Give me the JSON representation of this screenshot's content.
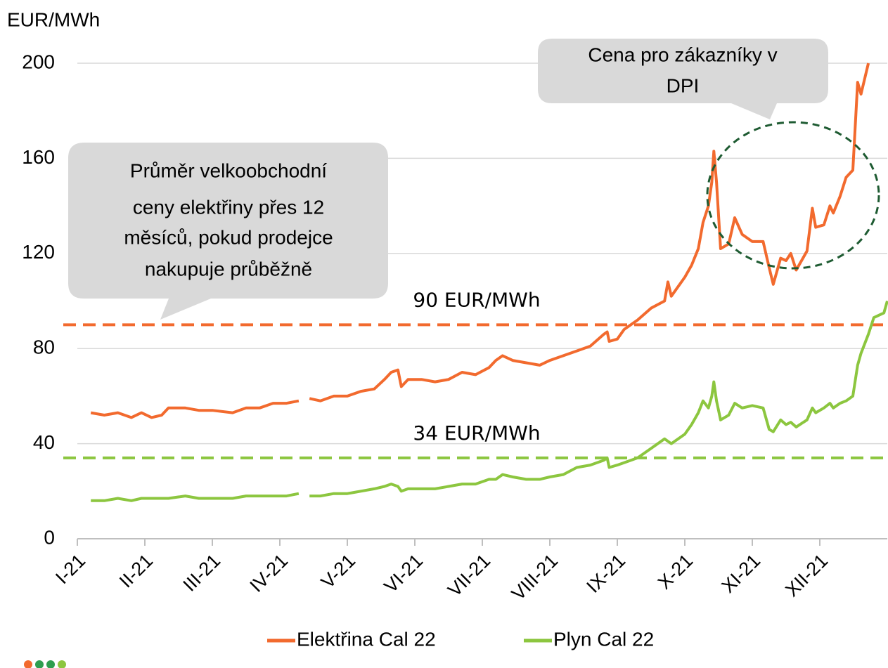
{
  "chart_data": {
    "type": "line",
    "y_axis_label": "EUR/MWh",
    "xlim": [
      0,
      12
    ],
    "xticks": [
      {
        "value": 0,
        "label": "I-21"
      },
      {
        "value": 1,
        "label": "II-21"
      },
      {
        "value": 2,
        "label": "III-21"
      },
      {
        "value": 3,
        "label": "IV-21"
      },
      {
        "value": 4,
        "label": "V-21"
      },
      {
        "value": 5,
        "label": "VI-21"
      },
      {
        "value": 6,
        "label": "VII-21"
      },
      {
        "value": 7,
        "label": "VIII-21"
      },
      {
        "value": 8,
        "label": "IX-21"
      },
      {
        "value": 9,
        "label": "X-21"
      },
      {
        "value": 10,
        "label": "XI-21"
      },
      {
        "value": 11,
        "label": "XII-21"
      }
    ],
    "ylim": [
      0,
      200
    ],
    "yticks": [
      0,
      40,
      80,
      120,
      160,
      200
    ],
    "grid": true,
    "series": [
      {
        "name": "Elektřina Cal 22",
        "color": "#f26a2e",
        "x": [
          0.2,
          0.4,
          0.6,
          0.8,
          0.95,
          1.1,
          1.25,
          1.35,
          1.6,
          1.8,
          2.0,
          2.3,
          2.5,
          2.7,
          2.9,
          3.1,
          3.28,
          3.36,
          3.44,
          3.6,
          3.8,
          4.0,
          4.2,
          4.4,
          4.55,
          4.65,
          4.75,
          4.8,
          4.9,
          5.1,
          5.3,
          5.5,
          5.7,
          5.9,
          6.1,
          6.2,
          6.3,
          6.45,
          6.65,
          6.85,
          7.0,
          7.2,
          7.4,
          7.6,
          7.8,
          7.85,
          7.88,
          8.0,
          8.1,
          8.3,
          8.5,
          8.7,
          8.75,
          8.8,
          9.0,
          9.1,
          9.2,
          9.27,
          9.35,
          9.4,
          9.43,
          9.47,
          9.53,
          9.65,
          9.74,
          9.85,
          10.0,
          10.16,
          10.25,
          10.31,
          10.42,
          10.5,
          10.57,
          10.65,
          10.81,
          10.89,
          10.94,
          11.06,
          11.15,
          11.2,
          11.3,
          11.39,
          11.49,
          11.56,
          11.61,
          11.72
        ],
        "values": [
          53,
          52,
          53,
          51,
          53,
          51,
          52,
          55,
          55,
          54,
          54,
          53,
          55,
          55,
          57,
          57,
          58,
          null,
          59,
          58,
          60,
          60,
          62,
          63,
          67,
          70,
          71,
          64,
          67,
          67,
          66,
          67,
          70,
          69,
          72,
          75,
          77,
          75,
          74,
          73,
          75,
          77,
          79,
          81,
          86,
          87,
          83,
          84,
          88,
          92,
          97,
          100,
          108,
          102,
          110,
          115,
          122,
          133,
          140,
          150,
          163,
          150,
          122,
          124,
          135,
          128,
          125,
          125,
          114,
          107,
          118,
          117,
          120,
          113,
          121,
          139,
          131,
          132,
          140,
          137,
          144,
          152,
          155,
          192,
          187,
          200
        ]
      },
      {
        "name": "Plyn Cal 22",
        "color": "#8cc63f",
        "x": [
          0.2,
          0.4,
          0.6,
          0.8,
          0.95,
          1.1,
          1.25,
          1.35,
          1.6,
          1.8,
          2.0,
          2.3,
          2.5,
          2.7,
          2.9,
          3.1,
          3.28,
          3.36,
          3.44,
          3.6,
          3.8,
          4.0,
          4.2,
          4.4,
          4.55,
          4.65,
          4.75,
          4.8,
          4.9,
          5.1,
          5.3,
          5.5,
          5.7,
          5.9,
          6.1,
          6.2,
          6.3,
          6.45,
          6.65,
          6.85,
          7.0,
          7.2,
          7.4,
          7.6,
          7.8,
          7.85,
          7.88,
          8.0,
          8.1,
          8.3,
          8.5,
          8.7,
          8.75,
          8.8,
          9.0,
          9.1,
          9.2,
          9.27,
          9.35,
          9.4,
          9.43,
          9.47,
          9.53,
          9.65,
          9.74,
          9.85,
          10.0,
          10.16,
          10.25,
          10.31,
          10.42,
          10.5,
          10.57,
          10.65,
          10.81,
          10.89,
          10.94,
          11.06,
          11.15,
          11.2,
          11.3,
          11.39,
          11.49,
          11.56,
          11.61,
          11.72,
          11.8,
          11.95,
          12.0
        ],
        "values": [
          16,
          16,
          17,
          16,
          17,
          17,
          17,
          17,
          18,
          17,
          17,
          17,
          18,
          18,
          18,
          18,
          19,
          null,
          18,
          18,
          19,
          19,
          20,
          21,
          22,
          23,
          22,
          20,
          21,
          21,
          21,
          22,
          23,
          23,
          25,
          25,
          27,
          26,
          25,
          25,
          26,
          27,
          30,
          31,
          33,
          34,
          30,
          31,
          32,
          34,
          38,
          42,
          41,
          40,
          44,
          48,
          53,
          58,
          55,
          60,
          66,
          58,
          50,
          52,
          57,
          55,
          56,
          55,
          46,
          45,
          50,
          48,
          49,
          47,
          50,
          55,
          53,
          55,
          57,
          55,
          57,
          58,
          60,
          73,
          78,
          86,
          93,
          95,
          100
        ]
      }
    ],
    "reference_lines": [
      {
        "label": "90 EUR/MWh",
        "value": 90,
        "color": "#f26a2e"
      },
      {
        "label": "34 EUR/MWh",
        "value": 34,
        "color": "#8cc63f"
      }
    ],
    "callouts": [
      {
        "lines": [
          "Průměr velkoobchodní",
          "ceny elektřiny přes 12",
          "měsíců, pokud prodejce",
          "nakupuje průběžně"
        ]
      },
      {
        "lines": [
          "Cena pro zákazníky v",
          "DPI"
        ]
      }
    ],
    "legend": "bottom"
  }
}
